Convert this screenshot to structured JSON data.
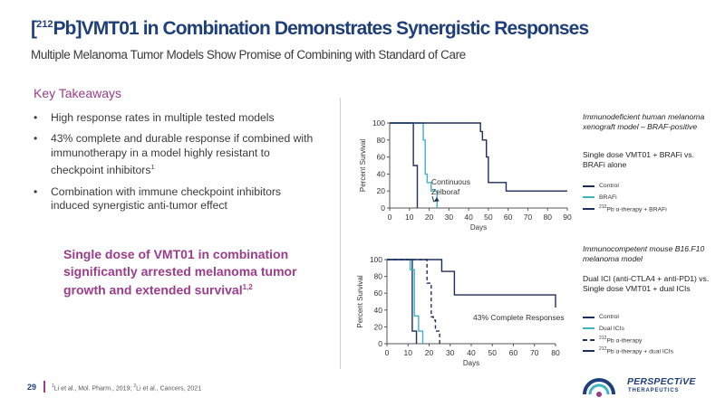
{
  "slide": {
    "title_sup": "212",
    "title_main": "Pb]VMT01 in Combination Demonstrates Synergistic Responses",
    "title_open": "[",
    "subtitle": "Multiple Melanoma Tumor Models Show Promise of Combining with Standard of Care",
    "takeaways_heading": "Key Takeaways",
    "bullets": [
      {
        "text": "High response rates in multiple tested models",
        "sup": ""
      },
      {
        "text": "43% complete and durable response if combined with immunotherapy in a model highly resistant to checkpoint inhibitors",
        "sup": "1"
      },
      {
        "text": "Combination with immune checkpoint inhibitors induced synergistic anti-tumor effect",
        "sup": ""
      }
    ],
    "bullet_char": "•",
    "highlight_text": "Single dose of VMT01 in combination significantly arrested melanoma tumor growth and extended survival",
    "highlight_sup": "1,2",
    "page_number": "29",
    "footnote_a_sup": "1",
    "footnote_a": "Li et al., Mol. Pharm., 2019; ",
    "footnote_b_sup": "2",
    "footnote_b": "Li et al., Cancers, 2021",
    "logo_name": "PERSPECTiVE",
    "logo_sub": "THERAPEUTICS",
    "colors": {
      "title": "#1f3f7a",
      "accent": "#9b3d8a",
      "navy": "#1f2d5c",
      "teal": "#3fb3c6"
    }
  },
  "chart1_notes": {
    "model": "Immunodeficient human melanoma xenograft model – BRAF-positive",
    "comparison": "Single dose VMT01 + BRAFi vs. BRAFi alone",
    "legend": [
      {
        "label": "Control",
        "sup": "",
        "color": "#1f2d5c",
        "dashed": false
      },
      {
        "label": "BRAFi",
        "sup": "",
        "color": "#3fb3c6",
        "dashed": false
      },
      {
        "label": "Pb α-therapy + BRAFi",
        "sup": "212",
        "color": "#1f2d5c",
        "dashed": false
      }
    ]
  },
  "chart2_notes": {
    "model": "Immunocompetent mouse B16.F10 melanoma model",
    "comparison": "Dual ICI (anti-CTLA4 + anti-PD1) vs. Single dose VMT01 + dual ICIs",
    "legend": [
      {
        "label": "Control",
        "sup": "",
        "color": "#1f2d5c",
        "dashed": false
      },
      {
        "label": "Dual ICIs",
        "sup": "",
        "color": "#3fb3c6",
        "dashed": false
      },
      {
        "label": "Pb α-therapy",
        "sup": "212",
        "color": "#1f2d5c",
        "dashed": true
      },
      {
        "label": "Pb α-therapy + dual ICIs",
        "sup": "212",
        "color": "#1f2d5c",
        "dashed": false
      }
    ]
  },
  "chart_data": [
    {
      "type": "line",
      "title": "",
      "xlabel": "Days",
      "ylabel": "Percent Survival",
      "xlim": [
        0,
        90
      ],
      "ylim": [
        0,
        100
      ],
      "xticks": [
        0,
        10,
        20,
        30,
        40,
        50,
        60,
        70,
        80,
        90
      ],
      "yticks": [
        0,
        20,
        40,
        60,
        80,
        100
      ],
      "annotation": {
        "text_line1": "Continuous",
        "text_line2": "Zelboraf",
        "x": 21,
        "y": 5
      },
      "series": [
        {
          "name": "Control",
          "color": "#1f2d5c",
          "dashed": false,
          "step": true,
          "x": [
            0,
            10,
            12,
            14,
            14
          ],
          "y": [
            100,
            100,
            50,
            20,
            0
          ]
        },
        {
          "name": "BRAFi",
          "color": "#3fb3c6",
          "dashed": false,
          "step": true,
          "x": [
            0,
            12,
            17,
            18,
            19,
            21,
            24,
            24
          ],
          "y": [
            100,
            100,
            80,
            40,
            30,
            20,
            10,
            0
          ]
        },
        {
          "name": "212Pb α-therapy + BRAFi",
          "color": "#1f2d5c",
          "dashed": false,
          "step": true,
          "x": [
            0,
            43,
            46,
            47,
            49,
            50,
            59,
            90
          ],
          "y": [
            100,
            100,
            90,
            80,
            60,
            30,
            20,
            20
          ]
        }
      ]
    },
    {
      "type": "line",
      "title": "",
      "xlabel": "Days",
      "ylabel": "Percent Survival",
      "xlim": [
        0,
        80
      ],
      "ylim": [
        0,
        100
      ],
      "xticks": [
        0,
        10,
        20,
        30,
        40,
        50,
        60,
        70,
        80
      ],
      "yticks": [
        0,
        20,
        40,
        60,
        80,
        100
      ],
      "annotation": {
        "text_line1": "43% Complete Responses",
        "text_line2": "",
        "x": 43,
        "y": 30
      },
      "series": [
        {
          "name": "Control",
          "color": "#1f2d5c",
          "dashed": false,
          "step": true,
          "x": [
            0,
            10,
            12,
            14,
            14
          ],
          "y": [
            100,
            100,
            15,
            0,
            0
          ]
        },
        {
          "name": "Dual ICIs",
          "color": "#3fb3c6",
          "dashed": false,
          "step": true,
          "x": [
            0,
            8,
            11,
            13,
            15,
            17,
            17
          ],
          "y": [
            100,
            100,
            88,
            33,
            15,
            0,
            0
          ]
        },
        {
          "name": "212Pb α-therapy",
          "color": "#1f2d5c",
          "dashed": true,
          "step": true,
          "x": [
            0,
            18,
            19,
            21,
            22,
            23,
            25,
            25
          ],
          "y": [
            100,
            100,
            72,
            32,
            28,
            15,
            0,
            0
          ]
        },
        {
          "name": "212Pb α-therapy + dual ICIs",
          "color": "#1f2d5c",
          "dashed": false,
          "step": true,
          "x": [
            0,
            20,
            26,
            32,
            80
          ],
          "y": [
            100,
            100,
            86,
            58,
            43
          ]
        }
      ]
    }
  ]
}
